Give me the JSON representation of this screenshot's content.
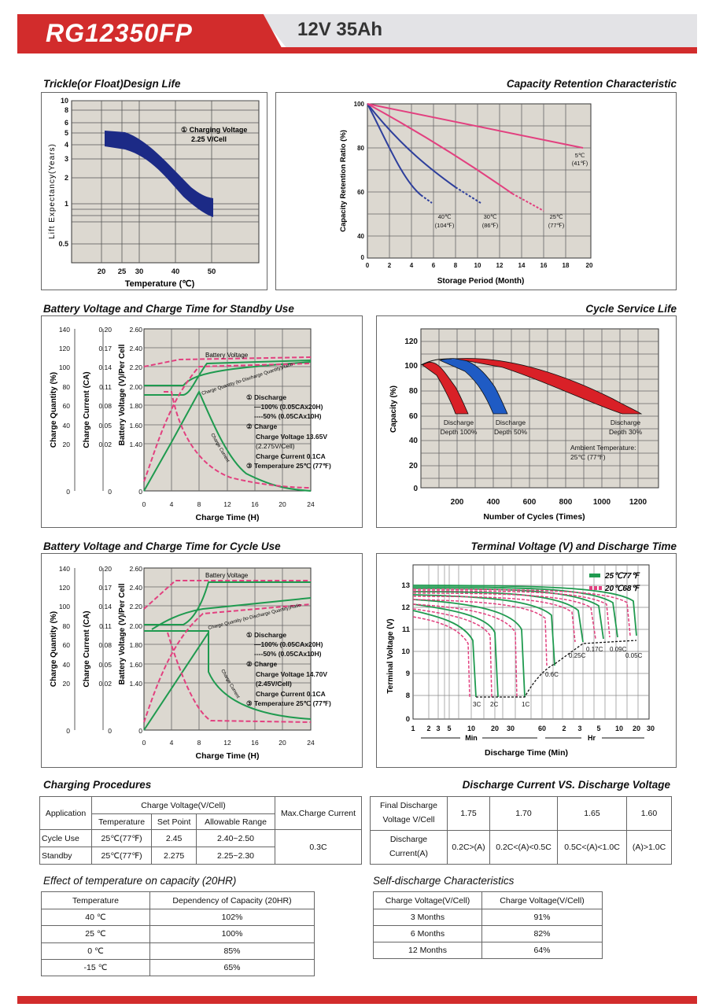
{
  "header": {
    "model": "RG12350FP",
    "spec": "12V  35Ah"
  },
  "float_life": {
    "title": "Trickle(or Float)Design Life",
    "ylabel": "Lift  Expectancy(Years)",
    "xlabel": "Temperature (℃)",
    "y_ticks": [
      "10",
      "8",
      "6",
      "5",
      "4",
      "3",
      "2",
      "1",
      "0.5"
    ],
    "x_ticks": [
      "20",
      "25",
      "30",
      "40",
      "50"
    ],
    "note1": "① Charging Voltage",
    "note2": "2.25 V/Cell"
  },
  "capacity_retention": {
    "title": "Capacity Retention  Characteristic",
    "ylabel": "Capacity Retention Ratio (%)",
    "xlabel": "Storage Period (Month)",
    "y_ticks": [
      "100",
      "80",
      "60",
      "40",
      "0"
    ],
    "x_ticks": [
      "0",
      "2",
      "4",
      "6",
      "8",
      "10",
      "12",
      "14",
      "16",
      "18",
      "20"
    ],
    "labels": [
      {
        "t1": "40℃",
        "t2": "(104℉)"
      },
      {
        "t1": "30℃",
        "t2": "(86℉)"
      },
      {
        "t1": "25℃",
        "t2": "(77℉)"
      },
      {
        "t1": "5℃",
        "t2": "(41℉)"
      }
    ]
  },
  "standby": {
    "title": "Battery Voltage and Charge Time for Standby Use",
    "y1label": "Charge Quantity (%)",
    "y2label": "Charge Current (CA)",
    "y3label": "Battery Voltage (V)/Per Cell",
    "xlabel": "Charge Time (H)",
    "q_ticks": [
      "140",
      "120",
      "100",
      "80",
      "60",
      "40",
      "20",
      "0"
    ],
    "c_ticks": [
      "0.20",
      "0.17",
      "0.14",
      "0.11",
      "0.08",
      "0.05",
      "0.02",
      "0"
    ],
    "v_ticks": [
      "2.60",
      "2.40",
      "2.20",
      "2.00",
      "1.80",
      "1.60",
      "1.40",
      "0"
    ],
    "x_ticks": [
      "0",
      "4",
      "8",
      "12",
      "16",
      "20",
      "24"
    ],
    "bv_label": "Battery Voltage",
    "cq_label": "Charge Quantity (to-Discharge Quantity)Ratio",
    "cc_label": "Charge Current",
    "n1": "① Discharge",
    "n2": "—100% (0.05CAx20H)",
    "n3": "----50% (0.05CAx10H)",
    "n4": "② Charge",
    "n5": "Charge Voltage 13.65V",
    "n6": "(2.275V/Cell)",
    "n7": "Charge Current 0.1CA",
    "n8": "③ Temperature 25℃ (77℉)"
  },
  "cycle_life": {
    "title": "Cycle Service Life",
    "ylabel": "Capacity (%)",
    "xlabel": "Number of Cycles (Times)",
    "y_ticks": [
      "120",
      "100",
      "80",
      "60",
      "40",
      "20",
      "0"
    ],
    "x_ticks": [
      "200",
      "400",
      "600",
      "800",
      "1000",
      "1200"
    ],
    "d1a": "Discharge",
    "d1b": "Depth 100%",
    "d2a": "Discharge",
    "d2b": "Depth 50%",
    "d3a": "Discharge",
    "d3b": "Depth 30%",
    "amb1": "Ambient Temperature:",
    "amb2": "25℃ (77℉)"
  },
  "cycle_use": {
    "title": "Battery Voltage and Charge Time for Cycle Use",
    "y1label": "Charge Quantity (%)",
    "y2label": "Charge Current (CA)",
    "y3label": "Battery Voltage (V)/Per Cell",
    "xlabel": "Charge Time (H)",
    "q_ticks": [
      "140",
      "120",
      "100",
      "80",
      "60",
      "40",
      "20",
      "0"
    ],
    "c_ticks": [
      "0.20",
      "0.17",
      "0.14",
      "0.11",
      "0.08",
      "0.05",
      "0.02",
      "0"
    ],
    "v_ticks": [
      "2.60",
      "2.40",
      "2.20",
      "2.00",
      "1.80",
      "1.60",
      "1.40",
      "0"
    ],
    "x_ticks": [
      "0",
      "4",
      "8",
      "12",
      "16",
      "20",
      "24"
    ],
    "bv_label": "Battery Voltage",
    "cq_label": "Charge Quantity (to-Discharge Quantity)Ratio",
    "cc_label": "Charge Current",
    "n1": "① Discharge",
    "n2": "—100% (0.05CAx20H)",
    "n3": "----50% (0.05CAx10H)",
    "n4": "② Charge",
    "n5": "Charge Voltage 14.70V",
    "n6": "(2.45V/Cell)",
    "n7": "Charge Current 0.1CA",
    "n8": "③ Temperature 25℃ (77℉)"
  },
  "discharge": {
    "title": "Terminal Voltage (V) and Discharge Time",
    "ylabel": "Terminal Voltage (V)",
    "xlabel": "Discharge Time (Min)",
    "y_ticks": [
      "13",
      "12",
      "11",
      "10",
      "9",
      "8",
      "0"
    ],
    "x_ticks": [
      "1",
      "2",
      "3",
      "5",
      "10",
      "20",
      "30",
      "60",
      "2",
      "3",
      "5",
      "10",
      "20",
      "30"
    ],
    "min_label": "Min",
    "hr_label": "Hr",
    "legend1": "25℃77℉",
    "legend2": "20℃68℉",
    "rates": [
      "3C",
      "2C",
      "1C",
      "0.6C",
      "0.25C",
      "0.17C",
      "0.09C",
      "0.05C"
    ]
  },
  "charging_procedures": {
    "title": "Charging Procedures",
    "h_app": "Application",
    "h_cv": "Charge Voltage(V/Cell)",
    "h_max": "Max.Charge Current",
    "h_temp": "Temperature",
    "h_set": "Set Point",
    "h_range": "Allowable Range",
    "rows": [
      {
        "app": "Cycle Use",
        "temp": "25℃(77℉)",
        "set": "2.45",
        "range": "2.40~2.50"
      },
      {
        "app": "Standby",
        "temp": "25℃(77℉)",
        "set": "2.275",
        "range": "2.25~2.30"
      }
    ],
    "max_current": "0.3C"
  },
  "discharge_voltage": {
    "title": "Discharge Current VS. Discharge Voltage",
    "r1": "Final Discharge Voltage V/Cell",
    "r2": "Discharge Current(A)",
    "volts": [
      "1.75",
      "1.70",
      "1.65",
      "1.60"
    ],
    "currents": [
      "0.2C>(A)",
      "0.2C<(A)<0.5C",
      "0.5C<(A)<1.0C",
      "(A)>1.0C"
    ]
  },
  "temp_effect": {
    "title": "Effect of temperature on capacity (20HR)",
    "h1": "Temperature",
    "h2": "Dependency of Capacity (20HR)",
    "rows": [
      {
        "t": "40 ℃",
        "v": "102%"
      },
      {
        "t": "25 ℃",
        "v": "100%"
      },
      {
        "t": "0 ℃",
        "v": "85%"
      },
      {
        "t": "-15 ℃",
        "v": "65%"
      }
    ]
  },
  "self_discharge": {
    "title": "Self-discharge Characteristics",
    "h1": "Charge Voltage(V/Cell)",
    "h2": "Charge Voltage(V/Cell)",
    "rows": [
      {
        "t": "3 Months",
        "v": "91%"
      },
      {
        "t": "6 Months",
        "v": "82%"
      },
      {
        "t": "12 Months",
        "v": "64%"
      }
    ]
  },
  "colors": {
    "red": "#d22c2c",
    "green": "#1f9a4f",
    "pink": "#e2407f",
    "navy": "#1c2a86",
    "blue_curve": "#2e3f9c",
    "grid_bg": "#dcd8d0"
  }
}
